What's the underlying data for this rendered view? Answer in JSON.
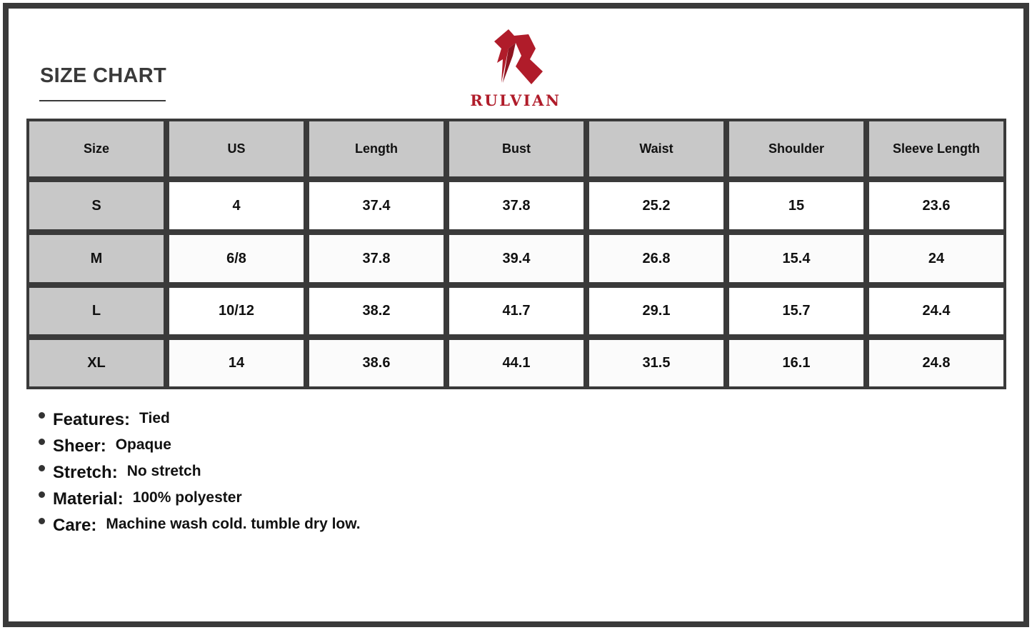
{
  "title": "SIZE CHART",
  "brand": {
    "name": "RULVIAN",
    "color": "#b01c2a"
  },
  "table": {
    "headers": [
      "Size",
      "US",
      "Length",
      "Bust",
      "Waist",
      "Shoulder",
      "Sleeve Length"
    ],
    "rows": [
      [
        "S",
        "4",
        "37.4",
        "37.8",
        "25.2",
        "15",
        "23.6"
      ],
      [
        "M",
        "6/8",
        "37.8",
        "39.4",
        "26.8",
        "15.4",
        "24"
      ],
      [
        "L",
        "10/12",
        "38.2",
        "41.7",
        "29.1",
        "15.7",
        "24.4"
      ],
      [
        "XL",
        "14",
        "38.6",
        "44.1",
        "31.5",
        "16.1",
        "24.8"
      ]
    ]
  },
  "features": [
    {
      "label": "Features:",
      "value": "Tied"
    },
    {
      "label": "Sheer:",
      "value": "Opaque"
    },
    {
      "label": "Stretch:",
      "value": "No stretch"
    },
    {
      "label": "Material:",
      "value": "100% polyester"
    },
    {
      "label": "Care:",
      "value": "Machine wash cold. tumble dry low."
    }
  ]
}
